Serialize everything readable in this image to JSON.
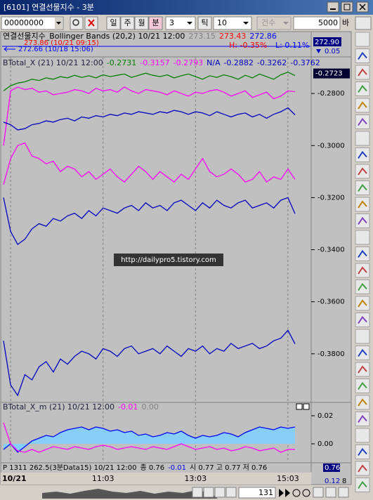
{
  "window": {
    "title": "[6101] 연결선물지수 - 3분"
  },
  "toolbar": {
    "code": "00000000",
    "periods": [
      "일",
      "주",
      "월",
      "분"
    ],
    "interval": "3",
    "tick_label": "틱",
    "tick": "10",
    "count_label": "건수",
    "count": "5000",
    "bar_label": "바"
  },
  "price_pane": {
    "line1": [
      {
        "text": "연결선물지수_Bollinger Bands  (20,2) 10/21 12:00",
        "color": "#000000"
      },
      {
        "text": "273.15",
        "color": "#808080"
      },
      {
        "text": "273.43",
        "color": "#ff0000"
      },
      {
        "text": "272.86",
        "color": "#0000ff"
      }
    ],
    "high_mark": {
      "text": "273.86 (10/21 09:15)",
      "color": "#ff0000"
    },
    "low_mark": {
      "text": "272.66 (10/18 15:06)",
      "color": "#0000ff"
    },
    "high": {
      "text": "H: -0.35%",
      "color": "#ff0000"
    },
    "low": {
      "text": "L: 0.11%",
      "color": "#0000ff"
    },
    "axis_labels": [
      "272.90",
      "0.05"
    ]
  },
  "watermark": "http://dailypro5.tistory.com",
  "chart_data": [
    {
      "type": "line",
      "title": "BTotal_X  (21) 10/21 12:00",
      "header_values": [
        {
          "text": "-0.2731",
          "color": "#008000"
        },
        {
          "text": "-0.3157",
          "color": "#ff00ff"
        },
        {
          "text": "-0.2793",
          "color": "#ff00ff"
        },
        {
          "text": "N/A",
          "color": "#0000c0"
        },
        {
          "text": "-0.2882",
          "color": "#0000c0"
        },
        {
          "text": "-0.3262",
          "color": "#0000c0"
        },
        {
          "text": "-0.3762",
          "color": "#0000c0"
        }
      ],
      "ylim": [
        -0.3984,
        -0.2662
      ],
      "yticks": [
        {
          "value": -0.28,
          "label": "-0.2800"
        },
        {
          "value": -0.3,
          "label": "-0.3000"
        },
        {
          "value": -0.32,
          "label": "-0.3200"
        },
        {
          "value": -0.34,
          "label": "-0.3400"
        },
        {
          "value": -0.36,
          "label": "-0.3600"
        },
        {
          "value": -0.38,
          "label": "-0.3800"
        }
      ],
      "current": {
        "value": -0.2723,
        "label": "-0.2723"
      },
      "series": [
        {
          "color": "#008000",
          "values": [
            -0.279,
            -0.277,
            -0.276,
            -0.2755,
            -0.2745,
            -0.275,
            -0.274,
            -0.2745,
            -0.2735,
            -0.274,
            -0.273,
            -0.2738,
            -0.2732,
            -0.274,
            -0.2728,
            -0.2735,
            -0.273,
            -0.2725,
            -0.2738,
            -0.273,
            -0.2722,
            -0.273,
            -0.2735,
            -0.2728,
            -0.274,
            -0.2732,
            -0.2725,
            -0.2735,
            -0.2745,
            -0.2732,
            -0.2738,
            -0.2728,
            -0.2735,
            -0.2745,
            -0.273,
            -0.274,
            -0.2725,
            -0.2735,
            -0.2745,
            -0.2728,
            -0.2718,
            -0.2731
          ]
        },
        {
          "color": "#ff00ff",
          "values": [
            -0.3,
            -0.279,
            -0.2775,
            -0.2785,
            -0.278,
            -0.2795,
            -0.279,
            -0.2805,
            -0.28,
            -0.2795,
            -0.2785,
            -0.279,
            -0.28,
            -0.278,
            -0.279,
            -0.2785,
            -0.2795,
            -0.2775,
            -0.279,
            -0.28,
            -0.2785,
            -0.279,
            -0.2795,
            -0.2805,
            -0.279,
            -0.28,
            -0.281,
            -0.2795,
            -0.28,
            -0.279,
            -0.2785,
            -0.2795,
            -0.281,
            -0.28,
            -0.279,
            -0.2815,
            -0.2805,
            -0.2795,
            -0.282,
            -0.281,
            -0.279,
            -0.2793
          ]
        },
        {
          "color": "#0000c0",
          "values": [
            -0.291,
            -0.292,
            -0.294,
            -0.2935,
            -0.292,
            -0.2915,
            -0.2905,
            -0.291,
            -0.29,
            -0.2895,
            -0.2905,
            -0.289,
            -0.2895,
            -0.2885,
            -0.289,
            -0.288,
            -0.2885,
            -0.2875,
            -0.288,
            -0.287,
            -0.2875,
            -0.288,
            -0.287,
            -0.2875,
            -0.2865,
            -0.287,
            -0.288,
            -0.287,
            -0.2875,
            -0.2885,
            -0.287,
            -0.288,
            -0.289,
            -0.288,
            -0.2875,
            -0.289,
            -0.288,
            -0.2895,
            -0.288,
            -0.287,
            -0.2855,
            -0.2882
          ]
        },
        {
          "color": "#ff00ff",
          "values": [
            -0.315,
            -0.305,
            -0.3,
            -0.299,
            -0.304,
            -0.305,
            -0.307,
            -0.306,
            -0.31,
            -0.308,
            -0.309,
            -0.312,
            -0.31,
            -0.313,
            -0.311,
            -0.309,
            -0.312,
            -0.314,
            -0.311,
            -0.308,
            -0.31,
            -0.313,
            -0.31,
            -0.312,
            -0.314,
            -0.311,
            -0.313,
            -0.309,
            -0.305,
            -0.31,
            -0.312,
            -0.311,
            -0.309,
            -0.311,
            -0.314,
            -0.313,
            -0.31,
            -0.314,
            -0.312,
            -0.313,
            -0.309,
            -0.313
          ]
        },
        {
          "color": "#0000c0",
          "values": [
            -0.32,
            -0.333,
            -0.338,
            -0.336,
            -0.332,
            -0.33,
            -0.331,
            -0.328,
            -0.329,
            -0.327,
            -0.326,
            -0.328,
            -0.325,
            -0.327,
            -0.324,
            -0.325,
            -0.326,
            -0.324,
            -0.323,
            -0.325,
            -0.322,
            -0.324,
            -0.323,
            -0.325,
            -0.322,
            -0.321,
            -0.323,
            -0.325,
            -0.322,
            -0.324,
            -0.321,
            -0.323,
            -0.324,
            -0.322,
            -0.321,
            -0.324,
            -0.323,
            -0.322,
            -0.324,
            -0.321,
            -0.32,
            -0.3262
          ]
        },
        {
          "color": "#0000c0",
          "values": [
            -0.375,
            -0.392,
            -0.396,
            -0.388,
            -0.39,
            -0.385,
            -0.383,
            -0.387,
            -0.382,
            -0.384,
            -0.381,
            -0.379,
            -0.38,
            -0.382,
            -0.378,
            -0.379,
            -0.381,
            -0.378,
            -0.377,
            -0.38,
            -0.379,
            -0.378,
            -0.38,
            -0.377,
            -0.379,
            -0.381,
            -0.378,
            -0.379,
            -0.377,
            -0.38,
            -0.378,
            -0.379,
            -0.376,
            -0.378,
            -0.377,
            -0.376,
            -0.378,
            -0.377,
            -0.375,
            -0.374,
            -0.371,
            -0.3762
          ]
        }
      ]
    },
    {
      "type": "line",
      "title": "BTotal_X_m  (21) 10/21 12:00",
      "header_values": [
        {
          "text": "-0.01",
          "color": "#ff00ff"
        },
        {
          "text": "0.00",
          "color": "#808080"
        }
      ],
      "categories": [
        null,
        "10/21",
        null,
        null,
        null,
        null,
        null,
        null,
        null,
        null,
        null,
        null,
        null,
        null,
        "11:03",
        null,
        null,
        null,
        null,
        null,
        null,
        null,
        null,
        null,
        null,
        null,
        null,
        "13:03",
        null,
        null,
        null,
        null,
        null,
        null,
        null,
        null,
        null,
        null,
        null,
        null,
        "15:03",
        null
      ],
      "ylim": [
        -0.013,
        0.029
      ],
      "yticks": [
        0.02,
        {
          "value": 0,
          "label": "0.00"
        }
      ],
      "series": [
        {
          "color": "#0000ff",
          "fill": "#87cefa",
          "values": [
            -0.004,
            0.0,
            -0.006,
            -0.002,
            0.002,
            0.004,
            0.006,
            0.005,
            0.008,
            0.01,
            0.011,
            0.012,
            0.01,
            0.012,
            0.011,
            0.009,
            0.01,
            0.008,
            0.009,
            0.006,
            0.007,
            0.005,
            0.006,
            0.008,
            0.007,
            0.009,
            0.006,
            0.004,
            0.006,
            0.005,
            0.006,
            0.008,
            0.007,
            0.005,
            0.008,
            0.01,
            0.012,
            0.011,
            0.01,
            0.012,
            0.011,
            0.012
          ]
        },
        {
          "color": "#ff00ff",
          "values": [
            0.015,
            0.0,
            -0.005,
            -0.006,
            -0.004,
            -0.006,
            -0.004,
            -0.002,
            -0.003,
            -0.004,
            -0.002,
            -0.003,
            -0.004,
            -0.002,
            -0.001,
            -0.002,
            -0.004,
            -0.003,
            -0.002,
            -0.003,
            -0.004,
            -0.002,
            -0.003,
            -0.004,
            -0.002,
            0.0,
            -0.002,
            -0.004,
            -0.003,
            -0.002,
            -0.004,
            -0.003,
            -0.005,
            -0.004,
            -0.002,
            -0.003,
            -0.005,
            -0.004,
            -0.003,
            -0.006,
            -0.004,
            -0.004
          ]
        }
      ]
    }
  ],
  "status": {
    "segments": [
      {
        "text": "P 1311 262.5(3분Data15) 10/21 12:00",
        "color": "#000000"
      },
      {
        "text": "종 0.76",
        "color": "#000000"
      },
      {
        "text": "-0.01",
        "color": "#0000ff"
      },
      {
        "text": "시 0.77 고 0.77 저 0.76",
        "color": "#000000"
      }
    ],
    "axis_labels": [
      "0.76",
      "0.12",
      "8"
    ]
  },
  "scroll": {
    "value": "131"
  }
}
